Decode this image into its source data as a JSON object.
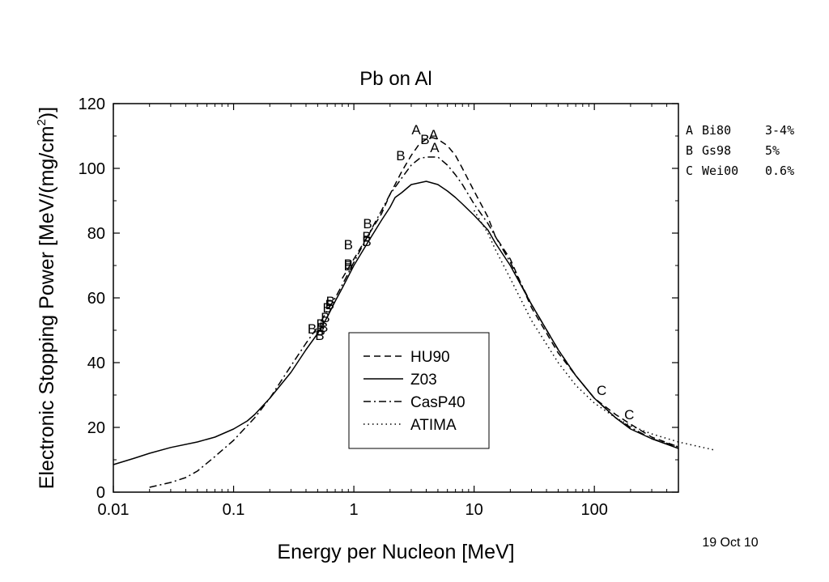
{
  "chart_data": {
    "type": "line",
    "title": "Pb on Al",
    "xlabel": "Energy per Nucleon [MeV]",
    "ylabel_main": "Electronic Stopping Power [MeV/(mg/cm",
    "ylabel_sup": "2",
    "ylabel_end": ")]",
    "x_scale": "log",
    "xlim": [
      0.01,
      500
    ],
    "ylim": [
      0,
      120
    ],
    "x_ticks": [
      {
        "value": 0.01,
        "label": "0.01"
      },
      {
        "value": 0.1,
        "label": "0.1"
      },
      {
        "value": 1,
        "label": "1"
      },
      {
        "value": 10,
        "label": "10"
      },
      {
        "value": 100,
        "label": "100"
      }
    ],
    "y_ticks": [
      {
        "value": 0,
        "label": "0"
      },
      {
        "value": 20,
        "label": "20"
      },
      {
        "value": 40,
        "label": "40"
      },
      {
        "value": 60,
        "label": "60"
      },
      {
        "value": 80,
        "label": "80"
      },
      {
        "value": 100,
        "label": "100"
      },
      {
        "value": 120,
        "label": "120"
      }
    ],
    "grid": false,
    "legend_position": "lower-center",
    "series": [
      {
        "name": "HU90",
        "dash": "dashed",
        "points": [
          [
            0.8,
            66
          ],
          [
            1,
            72
          ],
          [
            1.3,
            79
          ],
          [
            1.7,
            86
          ],
          [
            2,
            92
          ],
          [
            2.5,
            99
          ],
          [
            3,
            104
          ],
          [
            3.5,
            107.5
          ],
          [
            4,
            109
          ],
          [
            4.5,
            109.5
          ],
          [
            5,
            109
          ],
          [
            6,
            107
          ],
          [
            7,
            104
          ],
          [
            8,
            100
          ],
          [
            10,
            93
          ],
          [
            13,
            85
          ],
          [
            15,
            79
          ],
          [
            20,
            72
          ],
          [
            30,
            57
          ],
          [
            50,
            43
          ],
          [
            70,
            36
          ],
          [
            100,
            29
          ],
          [
            150,
            24
          ],
          [
            200,
            21
          ],
          [
            300,
            17
          ],
          [
            500,
            14
          ]
        ]
      },
      {
        "name": "Z03",
        "dash": "solid",
        "points": [
          [
            0.01,
            8.5
          ],
          [
            0.015,
            10.5
          ],
          [
            0.02,
            12
          ],
          [
            0.03,
            13.8
          ],
          [
            0.05,
            15.5
          ],
          [
            0.07,
            17
          ],
          [
            0.1,
            19.5
          ],
          [
            0.13,
            22
          ],
          [
            0.15,
            24
          ],
          [
            0.2,
            29
          ],
          [
            0.3,
            37
          ],
          [
            0.4,
            44
          ],
          [
            0.5,
            49
          ],
          [
            0.6,
            54
          ],
          [
            0.7,
            59
          ],
          [
            0.8,
            63
          ],
          [
            1,
            70
          ],
          [
            1.3,
            77
          ],
          [
            1.7,
            84
          ],
          [
            2,
            88
          ],
          [
            2.2,
            91
          ],
          [
            2.5,
            92.5
          ],
          [
            3,
            95
          ],
          [
            4,
            96
          ],
          [
            5,
            95
          ],
          [
            6,
            93
          ],
          [
            7,
            91
          ],
          [
            8,
            89
          ],
          [
            10,
            85.5
          ],
          [
            13,
            81
          ],
          [
            15,
            77
          ],
          [
            20,
            70
          ],
          [
            30,
            58
          ],
          [
            50,
            44
          ],
          [
            70,
            36
          ],
          [
            100,
            29
          ],
          [
            150,
            23
          ],
          [
            200,
            19.5
          ],
          [
            300,
            16.5
          ],
          [
            500,
            13.5
          ]
        ]
      },
      {
        "name": "CasP40",
        "dash": "dashdot",
        "points": [
          [
            0.02,
            1.5
          ],
          [
            0.03,
            3
          ],
          [
            0.04,
            4.5
          ],
          [
            0.05,
            6.5
          ],
          [
            0.07,
            11
          ],
          [
            0.1,
            16
          ],
          [
            0.15,
            23
          ],
          [
            0.2,
            29
          ],
          [
            0.3,
            39
          ],
          [
            0.4,
            46
          ],
          [
            0.5,
            51
          ],
          [
            0.6,
            56
          ],
          [
            0.7,
            60
          ],
          [
            0.8,
            64
          ],
          [
            1,
            71
          ],
          [
            1.3,
            79
          ],
          [
            1.7,
            87
          ],
          [
            2,
            92
          ],
          [
            2.5,
            97
          ],
          [
            3,
            101
          ],
          [
            3.5,
            103
          ],
          [
            4,
            103.5
          ],
          [
            5,
            103.5
          ],
          [
            6,
            101
          ],
          [
            7,
            98
          ],
          [
            8,
            95
          ],
          [
            10,
            89
          ],
          [
            13,
            83
          ],
          [
            15,
            79
          ],
          [
            20,
            71
          ],
          [
            30,
            58
          ],
          [
            50,
            44
          ],
          [
            70,
            36
          ],
          [
            100,
            29
          ],
          [
            150,
            23
          ],
          [
            200,
            20
          ],
          [
            300,
            16.5
          ],
          [
            500,
            14
          ]
        ]
      },
      {
        "name": "ATIMA",
        "dash": "dotted",
        "points": [
          [
            10,
            87
          ],
          [
            13,
            80
          ],
          [
            15,
            75
          ],
          [
            20,
            66
          ],
          [
            30,
            53
          ],
          [
            50,
            40
          ],
          [
            70,
            33
          ],
          [
            100,
            27.5
          ],
          [
            150,
            23
          ],
          [
            200,
            20.5
          ],
          [
            300,
            18
          ],
          [
            500,
            15.5
          ],
          [
            1000,
            13
          ]
        ]
      }
    ],
    "markers": [
      {
        "letter": "A",
        "x": 3.3,
        "y": 112
      },
      {
        "letter": "A",
        "x": 4.6,
        "y": 110.5
      },
      {
        "letter": "A",
        "x": 4.7,
        "y": 106.5
      },
      {
        "letter": "B",
        "x": 3.9,
        "y": 109
      },
      {
        "letter": "B",
        "x": 2.45,
        "y": 104
      },
      {
        "letter": "B",
        "x": 1.3,
        "y": 83
      },
      {
        "letter": "B",
        "x": 1.28,
        "y": 79
      },
      {
        "letter": "B",
        "x": 1.28,
        "y": 77.5
      },
      {
        "letter": "B",
        "x": 0.9,
        "y": 76.5
      },
      {
        "letter": "B",
        "x": 0.9,
        "y": 70.5
      },
      {
        "letter": "B",
        "x": 0.9,
        "y": 70
      },
      {
        "letter": "B",
        "x": 0.64,
        "y": 59
      },
      {
        "letter": "B",
        "x": 0.63,
        "y": 58
      },
      {
        "letter": "B",
        "x": 0.6,
        "y": 57
      },
      {
        "letter": "B",
        "x": 0.58,
        "y": 54
      },
      {
        "letter": "B",
        "x": 0.56,
        "y": 51
      },
      {
        "letter": "B",
        "x": 0.53,
        "y": 52
      },
      {
        "letter": "B",
        "x": 0.53,
        "y": 50
      },
      {
        "letter": "B",
        "x": 0.45,
        "y": 50.5
      },
      {
        "letter": "B",
        "x": 0.52,
        "y": 48.5
      },
      {
        "letter": "C",
        "x": 115,
        "y": 31.5
      },
      {
        "letter": "C",
        "x": 195,
        "y": 24
      }
    ],
    "references": [
      {
        "key": "A",
        "name": "Bi80",
        "error": "3-4%"
      },
      {
        "key": "B",
        "name": "Gs98",
        "error": "5%"
      },
      {
        "key": "C",
        "name": "Wei00",
        "error": "0.6%"
      }
    ],
    "date_stamp": "19 Oct 10"
  }
}
